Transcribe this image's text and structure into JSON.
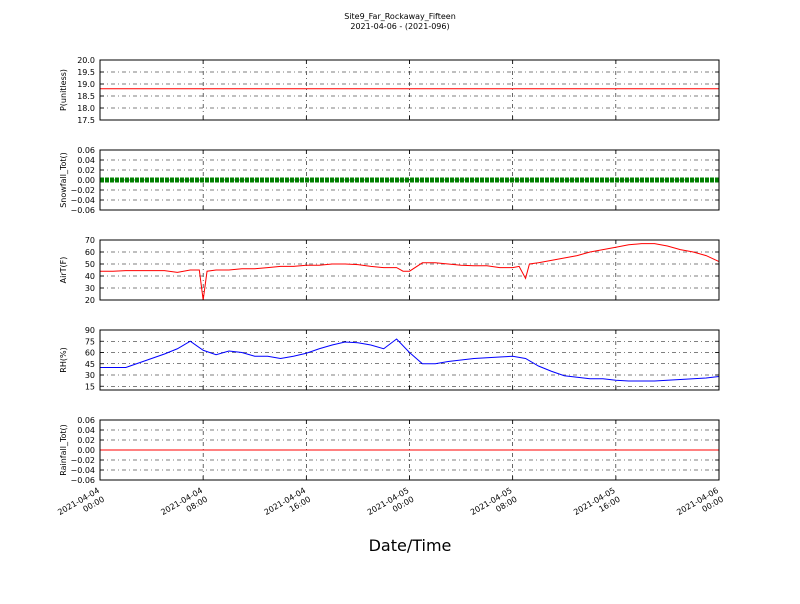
{
  "chart_data": {
    "type": "line",
    "title": "Site9_Far_Rockaway_Fifteen",
    "subtitle": "2021-04-06 - (2021-096)",
    "xlabel": "Date/Time",
    "x_ticks": [
      {
        "value": 0,
        "line1": "2021-04-04",
        "line2": "00:00"
      },
      {
        "value": 8,
        "line1": "2021-04-04",
        "line2": "08:00"
      },
      {
        "value": 16,
        "line1": "2021-04-04",
        "line2": "16:00"
      },
      {
        "value": 24,
        "line1": "2021-04-05",
        "line2": "00:00"
      },
      {
        "value": 32,
        "line1": "2021-04-05",
        "line2": "08:00"
      },
      {
        "value": 40,
        "line1": "2021-04-05",
        "line2": "16:00"
      },
      {
        "value": 48,
        "line1": "2021-04-06",
        "line2": "00:00"
      }
    ],
    "x_unit": "hours since 2021-04-04 00:00",
    "grid": true,
    "panels": [
      {
        "ylabel": "P(unitless)",
        "ylim": [
          17.5,
          20.0
        ],
        "yticks": [
          "17.5",
          "18.0",
          "18.5",
          "19.0",
          "19.5",
          "20.0"
        ],
        "ytick_values": [
          17.5,
          18.0,
          18.5,
          19.0,
          19.5,
          20.0
        ],
        "series": [
          {
            "color": "#ff0000",
            "style": "line",
            "points": [
              [
                0,
                18.8
              ],
              [
                48,
                18.8
              ]
            ]
          }
        ]
      },
      {
        "ylabel": "Snowfall_Tot()",
        "ylim": [
          -0.06,
          0.06
        ],
        "yticks": [
          "−0.06",
          "−0.04",
          "−0.02",
          "0.00",
          "0.02",
          "0.04",
          "0.06"
        ],
        "ytick_values": [
          -0.06,
          -0.04,
          -0.02,
          0.0,
          0.02,
          0.04,
          0.06
        ],
        "series": [
          {
            "color": "#008000",
            "style": "thick",
            "points": [
              [
                0,
                0
              ],
              [
                48,
                0
              ]
            ]
          }
        ]
      },
      {
        "ylabel": "AirT(F)",
        "ylim": [
          20,
          70
        ],
        "yticks": [
          "20",
          "30",
          "40",
          "50",
          "60",
          "70"
        ],
        "ytick_values": [
          20,
          30,
          40,
          50,
          60,
          70
        ],
        "series": [
          {
            "color": "#ff0000",
            "style": "line",
            "points": [
              [
                0,
                44
              ],
              [
                1,
                44
              ],
              [
                2,
                44.5
              ],
              [
                3,
                44.5
              ],
              [
                4,
                44.5
              ],
              [
                5,
                44.5
              ],
              [
                6,
                43
              ],
              [
                7,
                45
              ],
              [
                7.7,
                45
              ],
              [
                8,
                20
              ],
              [
                8.3,
                44
              ],
              [
                9,
                45
              ],
              [
                10,
                45
              ],
              [
                11,
                46
              ],
              [
                12,
                46
              ],
              [
                13,
                47
              ],
              [
                14,
                48
              ],
              [
                15,
                48
              ],
              [
                16,
                49
              ],
              [
                17,
                49
              ],
              [
                18,
                50
              ],
              [
                19,
                50
              ],
              [
                20,
                49.5
              ],
              [
                21,
                48
              ],
              [
                22,
                47
              ],
              [
                23,
                47
              ],
              [
                23.5,
                44
              ],
              [
                24,
                44
              ],
              [
                25,
                51
              ],
              [
                26,
                51
              ],
              [
                27,
                50
              ],
              [
                28,
                49
              ],
              [
                29,
                48.5
              ],
              [
                30,
                48.5
              ],
              [
                31,
                47
              ],
              [
                32,
                47
              ],
              [
                32.5,
                48
              ],
              [
                33,
                38
              ],
              [
                33.3,
                50
              ],
              [
                34,
                51
              ],
              [
                35,
                53
              ],
              [
                36,
                55
              ],
              [
                37,
                57
              ],
              [
                38,
                60
              ],
              [
                39,
                62
              ],
              [
                40,
                64
              ],
              [
                41,
                66
              ],
              [
                42,
                67
              ],
              [
                43,
                67
              ],
              [
                44,
                65
              ],
              [
                45,
                62
              ],
              [
                46,
                60
              ],
              [
                47,
                57
              ],
              [
                48,
                52
              ]
            ]
          }
        ]
      },
      {
        "ylabel": "RH(%)",
        "ylim": [
          10,
          90
        ],
        "yticks": [
          "15",
          "30",
          "45",
          "60",
          "75",
          "90"
        ],
        "ytick_values": [
          15,
          30,
          45,
          60,
          75,
          90
        ],
        "series": [
          {
            "color": "#0000ff",
            "style": "line",
            "points": [
              [
                0,
                40
              ],
              [
                1,
                40
              ],
              [
                2,
                40
              ],
              [
                3,
                46
              ],
              [
                4,
                52
              ],
              [
                5,
                58
              ],
              [
                6,
                65
              ],
              [
                7,
                75
              ],
              [
                8,
                63
              ],
              [
                9,
                57
              ],
              [
                10,
                62
              ],
              [
                11,
                60
              ],
              [
                12,
                55
              ],
              [
                13,
                55
              ],
              [
                14,
                52
              ],
              [
                15,
                55
              ],
              [
                16,
                59
              ],
              [
                17,
                65
              ],
              [
                18,
                70
              ],
              [
                19,
                74
              ],
              [
                20,
                73
              ],
              [
                21,
                70
              ],
              [
                22,
                65
              ],
              [
                23,
                78
              ],
              [
                24,
                60
              ],
              [
                25,
                45
              ],
              [
                26,
                45
              ],
              [
                27,
                48
              ],
              [
                28,
                50
              ],
              [
                29,
                52
              ],
              [
                30,
                53
              ],
              [
                31,
                54
              ],
              [
                32,
                55
              ],
              [
                33,
                52
              ],
              [
                34,
                42
              ],
              [
                35,
                35
              ],
              [
                36,
                29
              ],
              [
                37,
                27
              ],
              [
                38,
                25
              ],
              [
                39,
                25
              ],
              [
                40,
                23
              ],
              [
                41,
                22
              ],
              [
                42,
                22
              ],
              [
                43,
                22
              ],
              [
                44,
                23
              ],
              [
                45,
                24
              ],
              [
                46,
                25
              ],
              [
                47,
                26
              ],
              [
                48,
                28
              ]
            ]
          }
        ]
      },
      {
        "ylabel": "Rainfall_Tot()",
        "ylim": [
          -0.06,
          0.06
        ],
        "yticks": [
          "−0.06",
          "−0.04",
          "−0.02",
          "0.00",
          "0.02",
          "0.04",
          "0.06"
        ],
        "ytick_values": [
          -0.06,
          -0.04,
          -0.02,
          0.0,
          0.02,
          0.04,
          0.06
        ],
        "series": [
          {
            "color": "#ff0000",
            "style": "line",
            "points": [
              [
                0,
                0
              ],
              [
                48,
                0
              ]
            ]
          }
        ]
      }
    ]
  }
}
